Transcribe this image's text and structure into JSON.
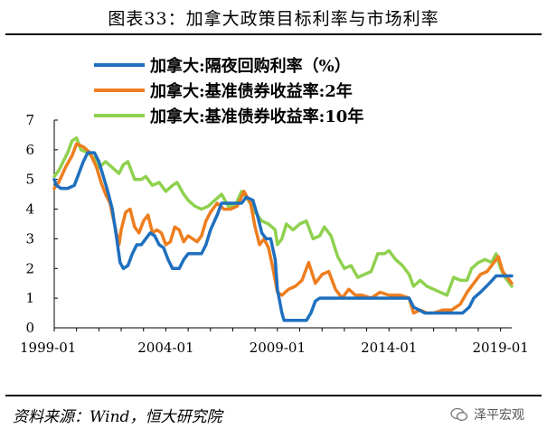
{
  "header": {
    "title": "图表33：加拿大政策目标利率与市场利率"
  },
  "footer": {
    "source": "资料来源：Wind，恒大研究院",
    "watermark": "泽平宏观"
  },
  "chart_data": {
    "type": "line",
    "title": "图表33：加拿大政策目标利率与市场利率",
    "xlabel": "",
    "ylabel": "",
    "x_ticks": [
      "1999-01",
      "2004-01",
      "2009-01",
      "2014-01",
      "2019-01"
    ],
    "y_ticks": [
      0,
      1,
      2,
      3,
      4,
      5,
      6,
      7
    ],
    "ylim": [
      0,
      7
    ],
    "x_range": [
      1999.0,
      2019.5
    ],
    "grid": false,
    "legend_position": "top",
    "series": [
      {
        "name": "加拿大:隔夜回购利率（%）",
        "color": "#1f6fbf",
        "points": [
          [
            1999.0,
            5.0
          ],
          [
            1999.1,
            4.8
          ],
          [
            1999.3,
            4.7
          ],
          [
            1999.6,
            4.7
          ],
          [
            1999.9,
            4.8
          ],
          [
            2000.1,
            5.2
          ],
          [
            2000.3,
            5.6
          ],
          [
            2000.5,
            5.9
          ],
          [
            2000.8,
            5.9
          ],
          [
            2001.0,
            5.6
          ],
          [
            2001.2,
            5.1
          ],
          [
            2001.4,
            4.6
          ],
          [
            2001.6,
            4.0
          ],
          [
            2001.8,
            3.0
          ],
          [
            2001.95,
            2.2
          ],
          [
            2002.1,
            2.0
          ],
          [
            2002.3,
            2.1
          ],
          [
            2002.5,
            2.5
          ],
          [
            2002.7,
            2.8
          ],
          [
            2002.9,
            2.8
          ],
          [
            2003.1,
            3.0
          ],
          [
            2003.3,
            3.2
          ],
          [
            2003.5,
            3.1
          ],
          [
            2003.7,
            2.8
          ],
          [
            2003.9,
            2.7
          ],
          [
            2004.1,
            2.3
          ],
          [
            2004.3,
            2.0
          ],
          [
            2004.6,
            2.0
          ],
          [
            2004.8,
            2.3
          ],
          [
            2005.0,
            2.5
          ],
          [
            2005.3,
            2.5
          ],
          [
            2005.6,
            2.5
          ],
          [
            2005.8,
            2.8
          ],
          [
            2006.0,
            3.3
          ],
          [
            2006.3,
            3.8
          ],
          [
            2006.5,
            4.2
          ],
          [
            2006.8,
            4.2
          ],
          [
            2007.1,
            4.2
          ],
          [
            2007.4,
            4.2
          ],
          [
            2007.6,
            4.4
          ],
          [
            2007.9,
            4.3
          ],
          [
            2008.1,
            3.8
          ],
          [
            2008.3,
            3.2
          ],
          [
            2008.5,
            3.0
          ],
          [
            2008.7,
            3.0
          ],
          [
            2008.9,
            2.3
          ],
          [
            2009.0,
            1.3
          ],
          [
            2009.2,
            0.5
          ],
          [
            2009.3,
            0.25
          ],
          [
            2009.8,
            0.25
          ],
          [
            2010.3,
            0.25
          ],
          [
            2010.5,
            0.5
          ],
          [
            2010.7,
            0.9
          ],
          [
            2010.9,
            1.0
          ],
          [
            2012.0,
            1.0
          ],
          [
            2013.0,
            1.0
          ],
          [
            2014.0,
            1.0
          ],
          [
            2014.9,
            1.0
          ],
          [
            2015.1,
            0.7
          ],
          [
            2015.6,
            0.5
          ],
          [
            2016.5,
            0.5
          ],
          [
            2017.3,
            0.5
          ],
          [
            2017.6,
            0.7
          ],
          [
            2017.8,
            1.0
          ],
          [
            2018.1,
            1.2
          ],
          [
            2018.5,
            1.5
          ],
          [
            2018.8,
            1.75
          ],
          [
            2019.1,
            1.75
          ],
          [
            2019.5,
            1.75
          ]
        ]
      },
      {
        "name": "加拿大:基准债券收益率:2年",
        "color": "#ee7d1e",
        "points": [
          [
            1999.0,
            4.7
          ],
          [
            1999.2,
            4.9
          ],
          [
            1999.5,
            5.4
          ],
          [
            1999.8,
            5.8
          ],
          [
            2000.0,
            6.2
          ],
          [
            2000.3,
            6.1
          ],
          [
            2000.6,
            5.9
          ],
          [
            2000.9,
            5.4
          ],
          [
            2001.1,
            4.9
          ],
          [
            2001.3,
            4.5
          ],
          [
            2001.5,
            4.2
          ],
          [
            2001.7,
            3.5
          ],
          [
            2001.9,
            2.8
          ],
          [
            2002.0,
            3.3
          ],
          [
            2002.2,
            3.9
          ],
          [
            2002.4,
            4.0
          ],
          [
            2002.6,
            3.4
          ],
          [
            2002.8,
            3.2
          ],
          [
            2003.0,
            3.6
          ],
          [
            2003.2,
            3.8
          ],
          [
            2003.4,
            3.2
          ],
          [
            2003.6,
            3.3
          ],
          [
            2003.8,
            3.2
          ],
          [
            2004.0,
            2.8
          ],
          [
            2004.2,
            2.9
          ],
          [
            2004.4,
            3.4
          ],
          [
            2004.6,
            3.3
          ],
          [
            2004.8,
            2.9
          ],
          [
            2005.0,
            3.1
          ],
          [
            2005.2,
            3.0
          ],
          [
            2005.4,
            2.9
          ],
          [
            2005.6,
            3.1
          ],
          [
            2005.8,
            3.6
          ],
          [
            2006.0,
            3.9
          ],
          [
            2006.3,
            4.2
          ],
          [
            2006.6,
            4.0
          ],
          [
            2006.9,
            4.0
          ],
          [
            2007.2,
            4.1
          ],
          [
            2007.5,
            4.6
          ],
          [
            2007.8,
            4.2
          ],
          [
            2008.0,
            3.4
          ],
          [
            2008.2,
            2.8
          ],
          [
            2008.4,
            3.0
          ],
          [
            2008.6,
            2.7
          ],
          [
            2008.8,
            2.0
          ],
          [
            2009.0,
            1.2
          ],
          [
            2009.2,
            1.1
          ],
          [
            2009.5,
            1.3
          ],
          [
            2009.8,
            1.4
          ],
          [
            2010.1,
            1.6
          ],
          [
            2010.4,
            2.2
          ],
          [
            2010.7,
            1.5
          ],
          [
            2011.0,
            1.8
          ],
          [
            2011.3,
            1.9
          ],
          [
            2011.6,
            1.3
          ],
          [
            2011.9,
            1.0
          ],
          [
            2012.2,
            1.3
          ],
          [
            2012.5,
            1.1
          ],
          [
            2012.8,
            1.1
          ],
          [
            2013.2,
            1.0
          ],
          [
            2013.6,
            1.2
          ],
          [
            2014.0,
            1.1
          ],
          [
            2014.5,
            1.1
          ],
          [
            2014.9,
            1.0
          ],
          [
            2015.1,
            0.5
          ],
          [
            2015.4,
            0.6
          ],
          [
            2015.7,
            0.5
          ],
          [
            2016.0,
            0.5
          ],
          [
            2016.4,
            0.6
          ],
          [
            2016.8,
            0.6
          ],
          [
            2017.2,
            0.8
          ],
          [
            2017.5,
            1.2
          ],
          [
            2017.8,
            1.5
          ],
          [
            2018.1,
            1.8
          ],
          [
            2018.4,
            1.9
          ],
          [
            2018.7,
            2.2
          ],
          [
            2018.9,
            2.4
          ],
          [
            2019.1,
            1.9
          ],
          [
            2019.3,
            1.7
          ],
          [
            2019.5,
            1.5
          ]
        ]
      },
      {
        "name": "加拿大:基准债券收益率:10年",
        "color": "#8fd14f",
        "points": [
          [
            1999.0,
            5.1
          ],
          [
            1999.2,
            5.3
          ],
          [
            1999.4,
            5.6
          ],
          [
            1999.6,
            5.9
          ],
          [
            1999.8,
            6.3
          ],
          [
            2000.0,
            6.4
          ],
          [
            2000.2,
            6.0
          ],
          [
            2000.5,
            5.9
          ],
          [
            2000.8,
            5.7
          ],
          [
            2001.0,
            5.4
          ],
          [
            2001.3,
            5.6
          ],
          [
            2001.6,
            5.4
          ],
          [
            2001.9,
            5.2
          ],
          [
            2002.1,
            5.5
          ],
          [
            2002.3,
            5.6
          ],
          [
            2002.6,
            5.0
          ],
          [
            2002.9,
            5.0
          ],
          [
            2003.1,
            5.1
          ],
          [
            2003.4,
            4.8
          ],
          [
            2003.7,
            4.9
          ],
          [
            2004.0,
            4.6
          ],
          [
            2004.3,
            4.8
          ],
          [
            2004.5,
            4.9
          ],
          [
            2004.8,
            4.5
          ],
          [
            2005.0,
            4.3
          ],
          [
            2005.3,
            4.1
          ],
          [
            2005.6,
            4.0
          ],
          [
            2005.9,
            4.1
          ],
          [
            2006.2,
            4.3
          ],
          [
            2006.5,
            4.5
          ],
          [
            2006.8,
            4.1
          ],
          [
            2007.1,
            4.1
          ],
          [
            2007.4,
            4.6
          ],
          [
            2007.7,
            4.3
          ],
          [
            2008.0,
            3.9
          ],
          [
            2008.3,
            3.6
          ],
          [
            2008.6,
            3.5
          ],
          [
            2008.9,
            3.3
          ],
          [
            2009.0,
            2.8
          ],
          [
            2009.2,
            3.0
          ],
          [
            2009.4,
            3.5
          ],
          [
            2009.7,
            3.3
          ],
          [
            2010.0,
            3.5
          ],
          [
            2010.3,
            3.6
          ],
          [
            2010.6,
            3.0
          ],
          [
            2010.9,
            3.1
          ],
          [
            2011.1,
            3.4
          ],
          [
            2011.4,
            3.1
          ],
          [
            2011.7,
            2.4
          ],
          [
            2012.0,
            2.0
          ],
          [
            2012.3,
            2.1
          ],
          [
            2012.6,
            1.7
          ],
          [
            2012.9,
            1.8
          ],
          [
            2013.2,
            1.9
          ],
          [
            2013.5,
            2.5
          ],
          [
            2013.8,
            2.5
          ],
          [
            2014.0,
            2.6
          ],
          [
            2014.3,
            2.3
          ],
          [
            2014.6,
            2.1
          ],
          [
            2014.9,
            1.8
          ],
          [
            2015.1,
            1.4
          ],
          [
            2015.4,
            1.6
          ],
          [
            2015.7,
            1.4
          ],
          [
            2016.0,
            1.3
          ],
          [
            2016.3,
            1.2
          ],
          [
            2016.6,
            1.1
          ],
          [
            2016.9,
            1.7
          ],
          [
            2017.2,
            1.6
          ],
          [
            2017.5,
            1.6
          ],
          [
            2017.7,
            2.0
          ],
          [
            2018.0,
            2.2
          ],
          [
            2018.3,
            2.3
          ],
          [
            2018.6,
            2.2
          ],
          [
            2018.8,
            2.5
          ],
          [
            2019.0,
            2.0
          ],
          [
            2019.2,
            1.7
          ],
          [
            2019.5,
            1.4
          ]
        ]
      }
    ]
  }
}
